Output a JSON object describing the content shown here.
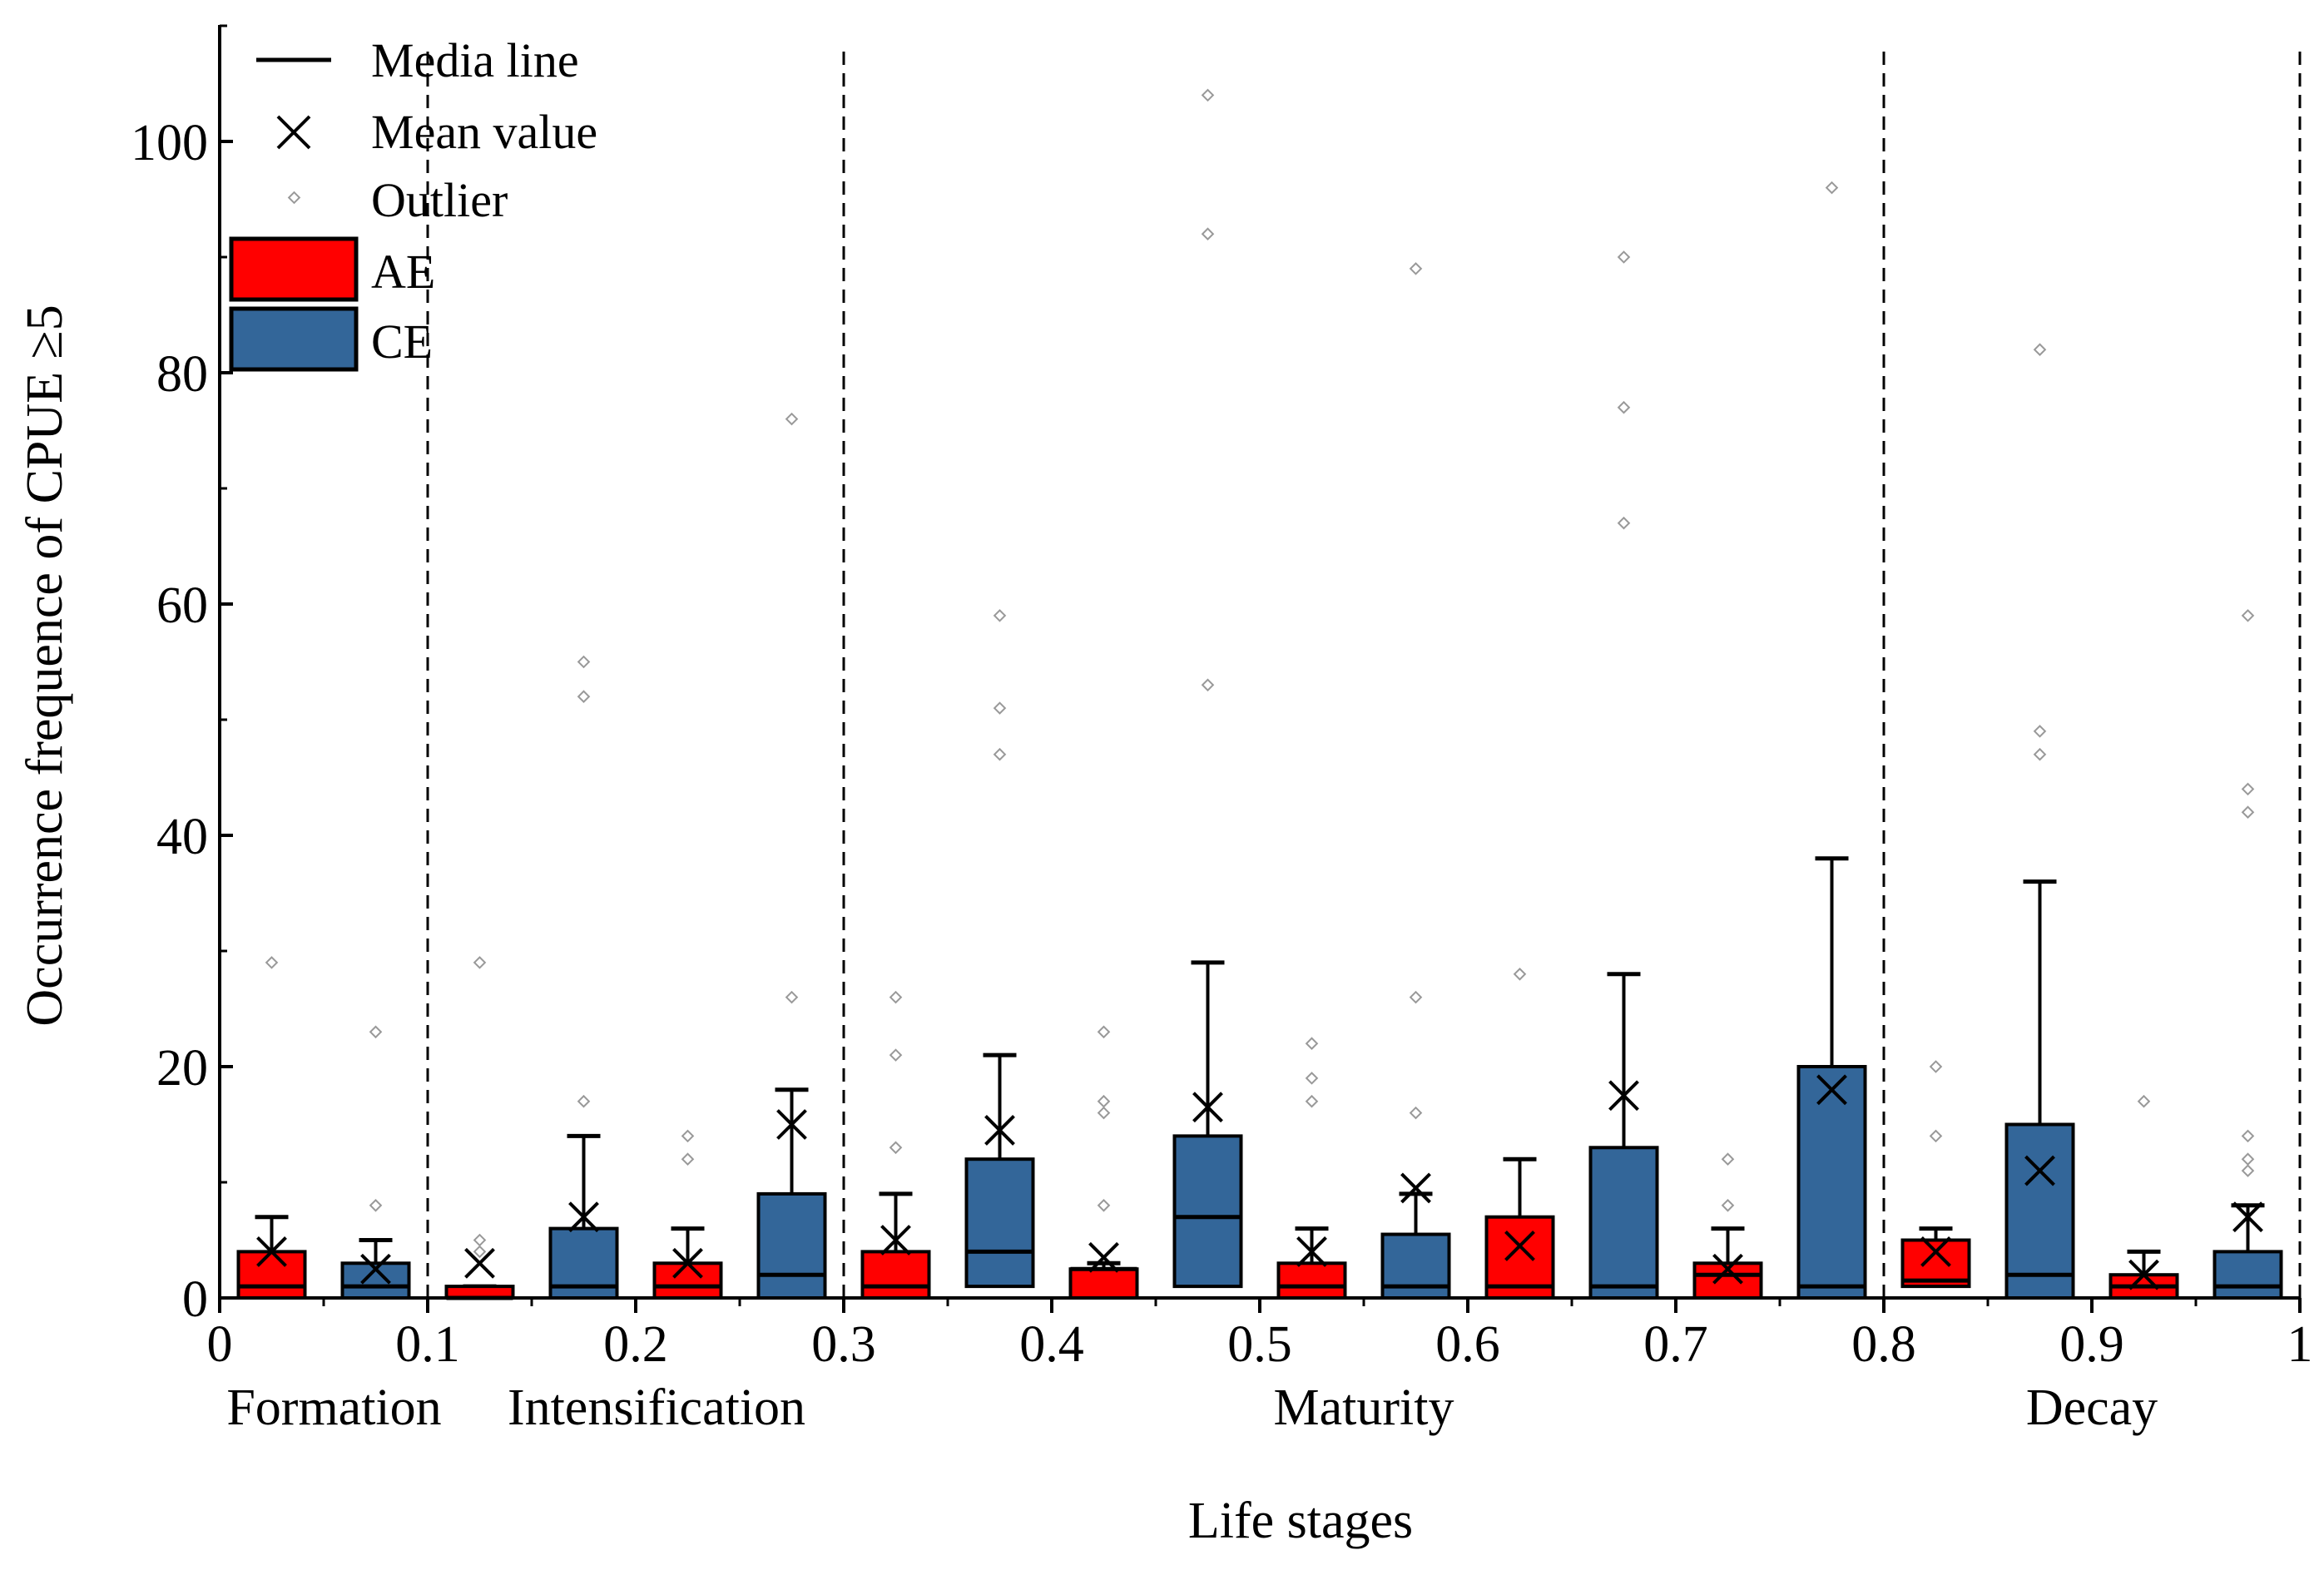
{
  "chart_data": {
    "type": "box",
    "xlabel": "Life stages",
    "ylabel": "Occurrence frequence of CPUE ≥5",
    "xlim": [
      0,
      1
    ],
    "ylim": [
      0,
      110
    ],
    "x_ticks": [
      "0",
      "0.1",
      "0.2",
      "0.3",
      "0.4",
      "0.5",
      "0.6",
      "0.7",
      "0.8",
      "0.9",
      "1"
    ],
    "y_ticks": [
      "0",
      "20",
      "40",
      "60",
      "80",
      "100"
    ],
    "stage_dividers": [
      0.1,
      0.3,
      0.8,
      1.0
    ],
    "stages": [
      {
        "label": "Formation",
        "center": 0.055
      },
      {
        "label": "Intensification",
        "center": 0.21
      },
      {
        "label": "Maturity",
        "center": 0.55
      },
      {
        "label": "Decay",
        "center": 0.9
      }
    ],
    "legend": {
      "median": "Media line",
      "mean": "Mean value",
      "outlier": "Outlier",
      "series": [
        "AE",
        "CE"
      ]
    },
    "series_colors": {
      "AE": "#ff0000",
      "CE": "#336699"
    },
    "boxes": [
      {
        "series": "AE",
        "x": 0.025,
        "q1": 0,
        "median": 1,
        "q3": 4,
        "whisker_low": 0,
        "whisker_high": 7,
        "mean": 4,
        "outliers": [
          29
        ]
      },
      {
        "series": "CE",
        "x": 0.075,
        "q1": 0,
        "median": 1,
        "q3": 3,
        "whisker_low": 0,
        "whisker_high": 5,
        "mean": 2.5,
        "outliers": [
          8,
          23
        ]
      },
      {
        "series": "AE",
        "x": 0.125,
        "q1": 0,
        "median": 0,
        "q3": 1,
        "whisker_low": 0,
        "whisker_high": 1,
        "mean": 3,
        "outliers": [
          4,
          5,
          29
        ]
      },
      {
        "series": "CE",
        "x": 0.175,
        "q1": 0,
        "median": 1,
        "q3": 6,
        "whisker_low": 0,
        "whisker_high": 14,
        "mean": 7,
        "outliers": [
          17,
          52,
          55
        ]
      },
      {
        "series": "AE",
        "x": 0.225,
        "q1": 0,
        "median": 1,
        "q3": 3,
        "whisker_low": 0,
        "whisker_high": 6,
        "mean": 3,
        "outliers": [
          12,
          14
        ]
      },
      {
        "series": "CE",
        "x": 0.275,
        "q1": 0,
        "median": 2,
        "q3": 9,
        "whisker_low": 0,
        "whisker_high": 18,
        "mean": 15,
        "outliers": [
          26,
          76
        ]
      },
      {
        "series": "AE",
        "x": 0.325,
        "q1": 0,
        "median": 1,
        "q3": 4,
        "whisker_low": 0,
        "whisker_high": 9,
        "mean": 5,
        "outliers": [
          13,
          21,
          26
        ]
      },
      {
        "series": "CE",
        "x": 0.375,
        "q1": 1,
        "median": 4,
        "q3": 12,
        "whisker_low": 0,
        "whisker_high": 21,
        "mean": 14.5,
        "outliers": [
          47,
          51,
          59
        ]
      },
      {
        "series": "AE",
        "x": 0.425,
        "q1": 0,
        "median": 2.5,
        "q3": 2.5,
        "whisker_low": 0,
        "whisker_high": 3,
        "mean": 3.5,
        "outliers": [
          8,
          16,
          17,
          23
        ]
      },
      {
        "series": "CE",
        "x": 0.475,
        "q1": 1,
        "median": 7,
        "q3": 14,
        "whisker_low": 0,
        "whisker_high": 29,
        "mean": 16.5,
        "outliers": [
          53,
          92,
          104
        ]
      },
      {
        "series": "AE",
        "x": 0.525,
        "q1": 0,
        "median": 1,
        "q3": 3,
        "whisker_low": 0,
        "whisker_high": 6,
        "mean": 4,
        "outliers": [
          17,
          19,
          22
        ]
      },
      {
        "series": "CE",
        "x": 0.575,
        "q1": 0,
        "median": 1,
        "q3": 5.5,
        "whisker_low": 0,
        "whisker_high": 9,
        "mean": 9.5,
        "outliers": [
          16,
          26,
          89
        ]
      },
      {
        "series": "AE",
        "x": 0.625,
        "q1": 0,
        "median": 1,
        "q3": 7,
        "whisker_low": 0,
        "whisker_high": 12,
        "mean": 4.5,
        "outliers": [
          28
        ]
      },
      {
        "series": "CE",
        "x": 0.675,
        "q1": 0,
        "median": 1,
        "q3": 13,
        "whisker_low": 0,
        "whisker_high": 28,
        "mean": 17.5,
        "outliers": [
          67,
          77,
          90
        ]
      },
      {
        "series": "AE",
        "x": 0.725,
        "q1": 0,
        "median": 2,
        "q3": 3,
        "whisker_low": 0,
        "whisker_high": 6,
        "mean": 2.5,
        "outliers": [
          8,
          12
        ]
      },
      {
        "series": "CE",
        "x": 0.775,
        "q1": 0,
        "median": 1,
        "q3": 20,
        "whisker_low": 0,
        "whisker_high": 38,
        "mean": 18,
        "outliers": [
          96
        ]
      },
      {
        "series": "AE",
        "x": 0.825,
        "q1": 1,
        "median": 1.5,
        "q3": 5,
        "whisker_low": 0,
        "whisker_high": 6,
        "mean": 4,
        "outliers": [
          14,
          20
        ]
      },
      {
        "series": "CE",
        "x": 0.875,
        "q1": 0,
        "median": 2,
        "q3": 15,
        "whisker_low": 0,
        "whisker_high": 36,
        "mean": 11,
        "outliers": [
          47,
          49,
          82
        ]
      },
      {
        "series": "AE",
        "x": 0.925,
        "q1": 0,
        "median": 1,
        "q3": 2,
        "whisker_low": 0,
        "whisker_high": 4,
        "mean": 2,
        "outliers": [
          17
        ]
      },
      {
        "series": "CE",
        "x": 0.975,
        "q1": 0,
        "median": 1,
        "q3": 4,
        "whisker_low": 0,
        "whisker_high": 8,
        "mean": 7,
        "outliers": [
          11,
          12,
          14,
          42,
          44,
          59
        ]
      }
    ]
  }
}
